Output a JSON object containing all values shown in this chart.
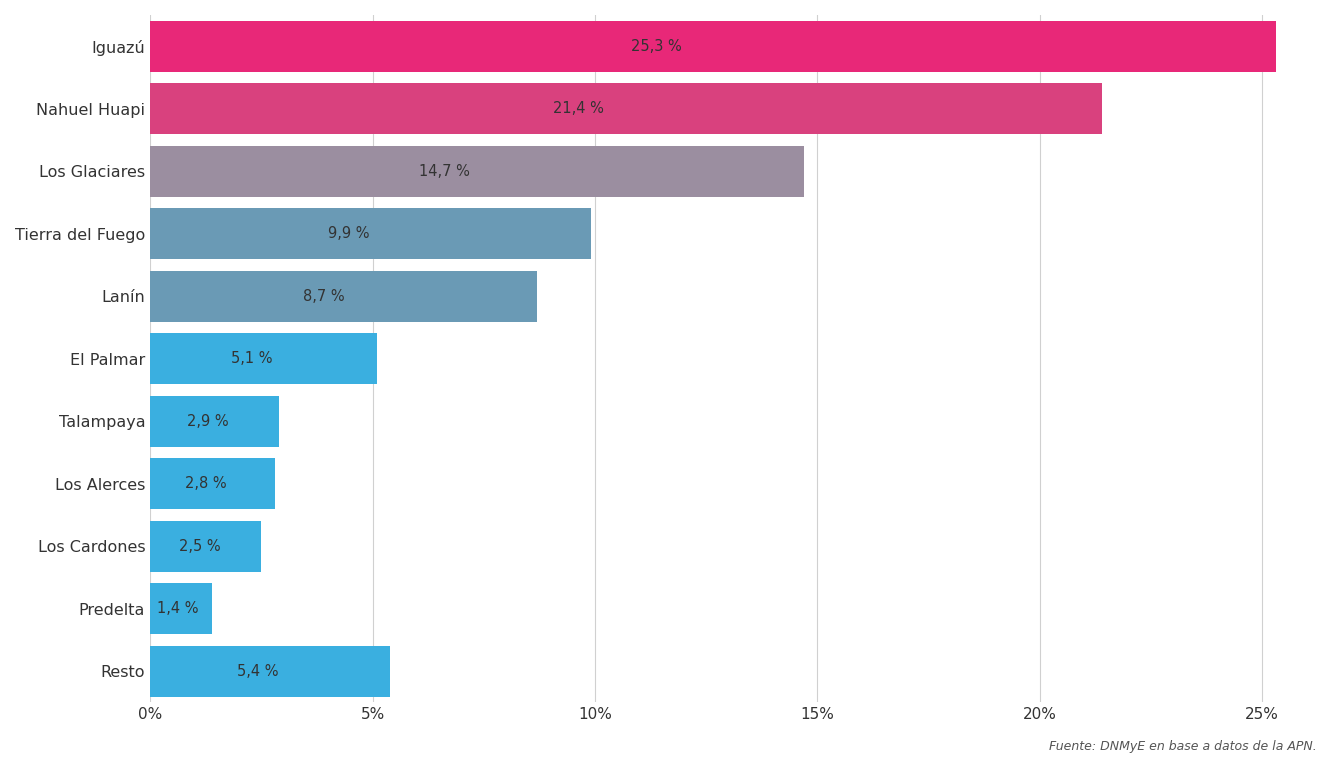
{
  "categories": [
    "Resto",
    "Predelta",
    "Los Cardones",
    "Los Alerces",
    "Talampaya",
    "El Palmar",
    "Lanín",
    "Tierra del Fuego",
    "Los Glaciares",
    "Nahuel Huapi",
    "Iguazú"
  ],
  "values": [
    5.4,
    1.4,
    2.5,
    2.8,
    2.9,
    5.1,
    8.7,
    9.9,
    14.7,
    21.4,
    25.3
  ],
  "labels": [
    "5,4 %",
    "1,4 %",
    "2,5 %",
    "2,8 %",
    "2,9 %",
    "5,1 %",
    "8,7 %",
    "9,9 %",
    "14,7 %",
    "21,4 %",
    "25,3 %"
  ],
  "colors": [
    "#3AAFE0",
    "#3AAFE0",
    "#3AAFE0",
    "#3AAFE0",
    "#3AAFE0",
    "#3AAFE0",
    "#6A9AB5",
    "#6A9AB5",
    "#9B8EA0",
    "#D9417E",
    "#E82878"
  ],
  "background_color": "#FFFFFF",
  "grid_color": "#D0D0D0",
  "text_color": "#333333",
  "label_color": "#333333",
  "source_text": "Fuente: DNMyE en base a datos de la APN.",
  "xlim": [
    0,
    26.5
  ],
  "xticks": [
    0,
    5,
    10,
    15,
    20,
    25
  ],
  "xtick_labels": [
    "0%",
    "5%",
    "10%",
    "15%",
    "20%",
    "25%"
  ],
  "bar_height": 0.82,
  "figsize": [
    13.44,
    7.68
  ],
  "dpi": 100
}
